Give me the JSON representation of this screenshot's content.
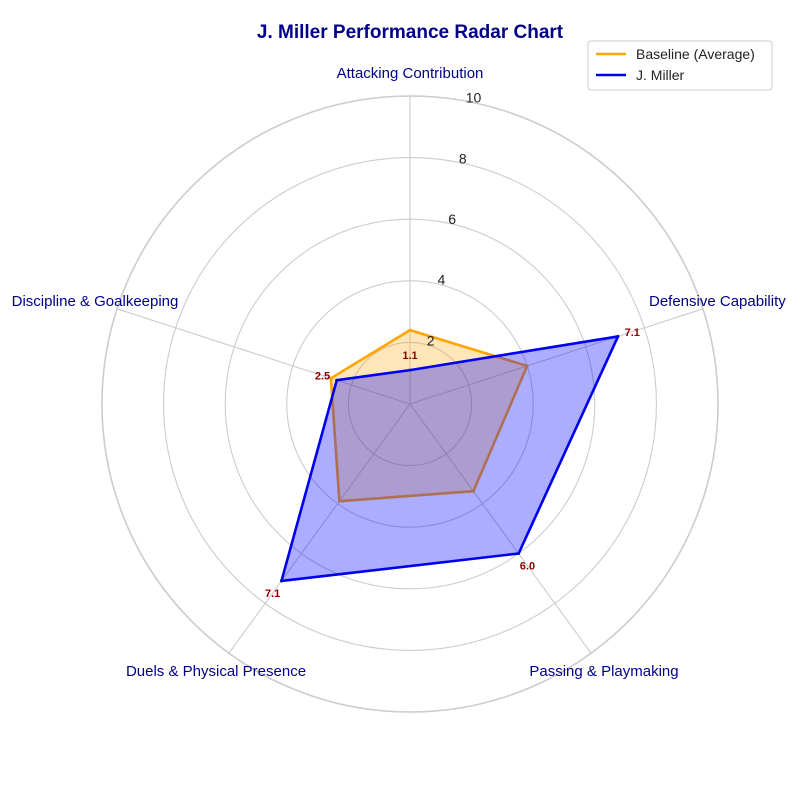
{
  "chart_data": {
    "type": "radar",
    "title": "J. Miller Performance Radar Chart",
    "axes": [
      "Attacking Contribution",
      "Defensive Capability",
      "Passing & Playmaking",
      "Duels & Physical Presence",
      "Discipline & Goalkeeping"
    ],
    "rlim": [
      0,
      10
    ],
    "rticks": [
      2,
      4,
      6,
      8,
      10
    ],
    "grid": true,
    "legend_position": "top-right",
    "series": [
      {
        "name": "Baseline (Average)",
        "values": [
          2.4,
          4.0,
          3.5,
          3.9,
          2.7
        ],
        "color": "#ffa500",
        "fill": "#ffa500"
      },
      {
        "name": "J. Miller",
        "values": [
          1.1,
          7.1,
          6.0,
          7.1,
          2.5
        ],
        "color": "#0000ee",
        "fill": "#0000ff"
      }
    ],
    "data_labels": [
      "1.1",
      "7.1",
      "6.0",
      "7.1",
      "2.5"
    ],
    "colors": {
      "title": "#00008b",
      "axis_label": "#00008b",
      "data_label": "#8b0000",
      "grid": "#cccccc"
    }
  }
}
